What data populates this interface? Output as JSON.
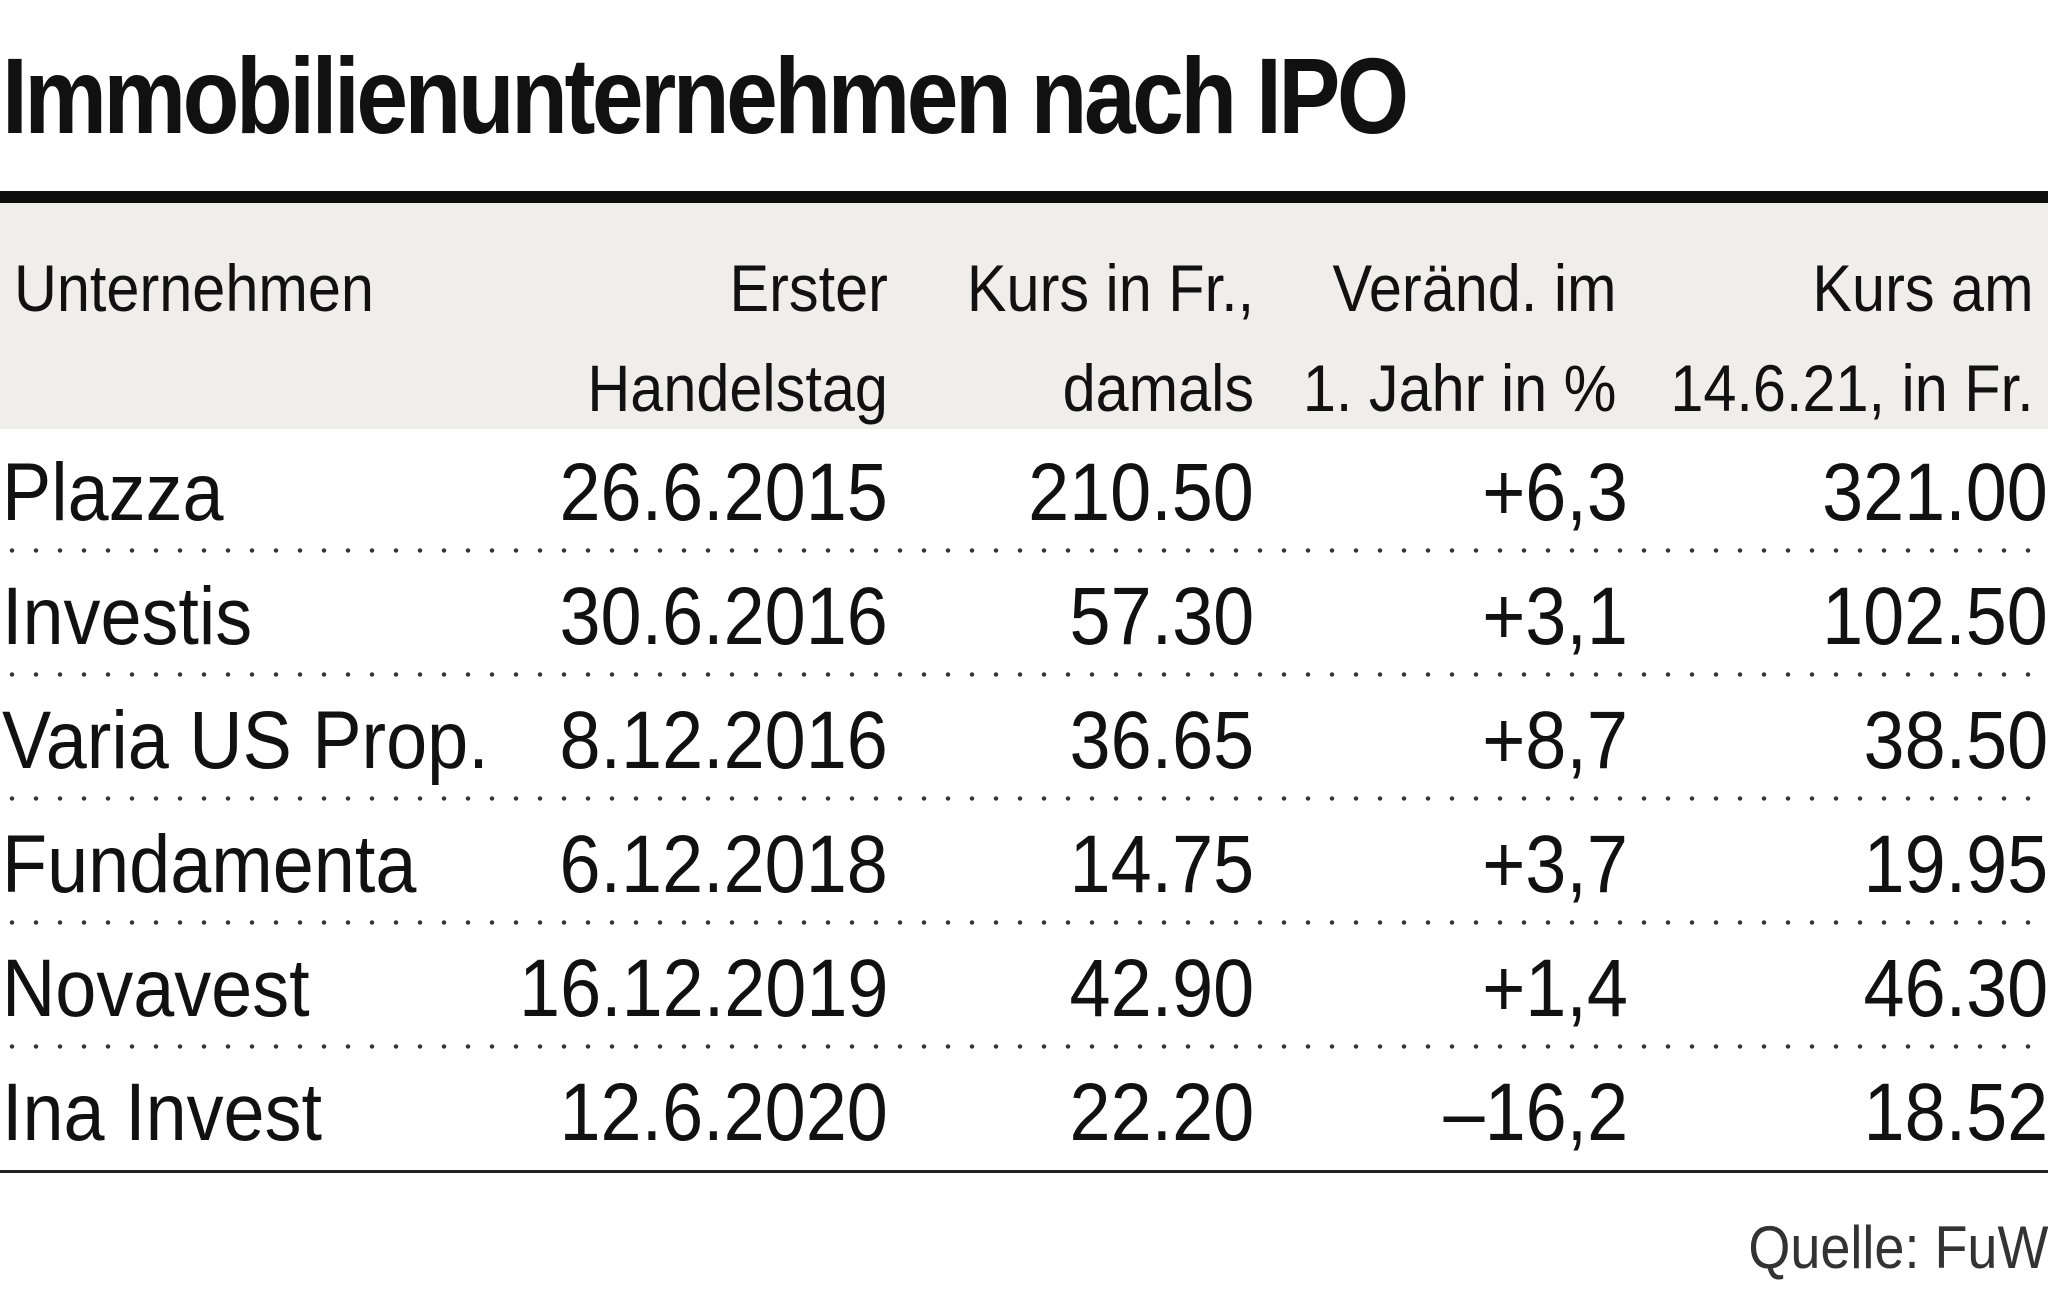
{
  "chart_data": {
    "type": "table",
    "title": "Immobilienunternehmen nach IPO",
    "columns": [
      {
        "key": "company",
        "lines": [
          "Unternehmen"
        ]
      },
      {
        "key": "first_day",
        "lines": [
          "Erster",
          "Handelstag"
        ]
      },
      {
        "key": "price_then",
        "lines": [
          "Kurs in Fr.,",
          "damals"
        ]
      },
      {
        "key": "change",
        "lines": [
          "Veränd. im",
          "1. Jahr in %"
        ]
      },
      {
        "key": "price_now",
        "lines": [
          "Kurs am",
          "14.6.21, in Fr."
        ]
      }
    ],
    "rows": [
      {
        "company": "Plazza",
        "first_day": "26.6.2015",
        "price_then": "210.50",
        "change": "+6,3",
        "price_now": "321.00"
      },
      {
        "company": "Investis",
        "first_day": "30.6.2016",
        "price_then": "57.30",
        "change": "+3,1",
        "price_now": "102.50"
      },
      {
        "company": "Varia US Prop.",
        "first_day": "8.12.2016",
        "price_then": "36.65",
        "change": "+8,7",
        "price_now": "38.50"
      },
      {
        "company": "Fundamenta",
        "first_day": "6.12.2018",
        "price_then": "14.75",
        "change": "+3,7",
        "price_now": "19.95"
      },
      {
        "company": "Novavest",
        "first_day": "16.12.2019",
        "price_then": "42.90",
        "change": "+1,4",
        "price_now": "46.30"
      },
      {
        "company": "Ina Invest",
        "first_day": "12.6.2020",
        "price_then": "22.20",
        "change": "–16,2",
        "price_now": "18.52"
      }
    ],
    "source": "Quelle: FuW"
  }
}
